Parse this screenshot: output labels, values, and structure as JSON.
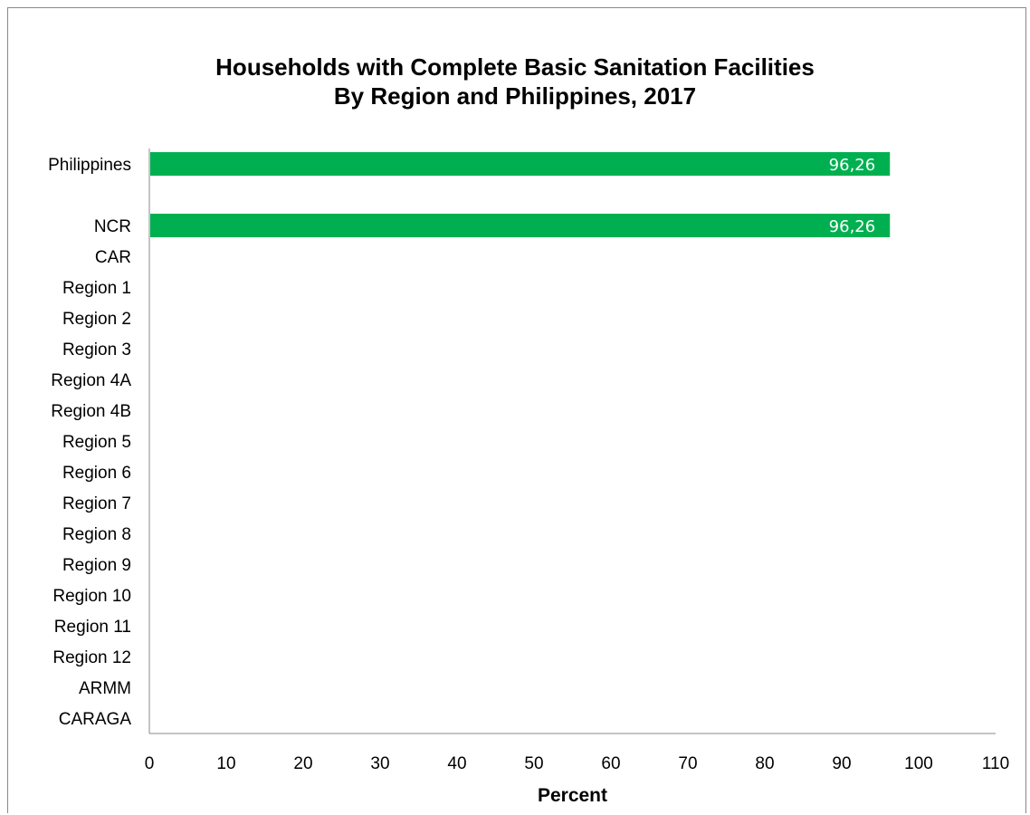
{
  "chart_data": {
    "type": "bar",
    "orientation": "horizontal",
    "title_lines": [
      "Households with Complete Basic Sanitation Facilities",
      "By Region and Philippines, 2017"
    ],
    "xlabel": "Percent",
    "ylabel": "",
    "xlim": [
      0,
      110
    ],
    "xticks": [
      0,
      10,
      20,
      30,
      40,
      50,
      60,
      70,
      80,
      90,
      100,
      110
    ],
    "bar_color": "#00b050",
    "label_color": "#ffffff",
    "categories": [
      "Philippines",
      "",
      "NCR",
      "CAR",
      "Region 1",
      "Region 2",
      "Region 3",
      "Region 4A",
      "Region 4B",
      "Region 5",
      "Region 6",
      "Region 7",
      "Region 8",
      "Region 9",
      "Region 10",
      "Region 11",
      "Region 12",
      "ARMM",
      "CARAGA"
    ],
    "values": [
      96.26,
      null,
      96.26,
      null,
      null,
      null,
      null,
      null,
      null,
      null,
      null,
      null,
      null,
      null,
      null,
      null,
      null,
      null,
      null
    ],
    "data_labels": [
      "96,26",
      "",
      "96,26",
      "",
      "",
      "",
      "",
      "",
      "",
      "",
      "",
      "",
      "",
      "",
      "",
      "",
      "",
      "",
      ""
    ],
    "grid": false,
    "legend": "none"
  }
}
